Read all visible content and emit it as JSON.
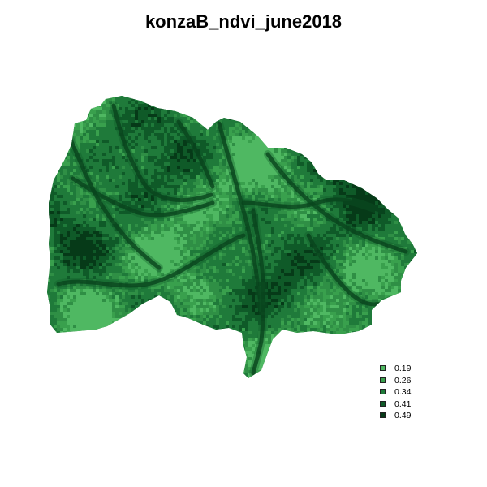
{
  "title": "konzaB_ndvi_june2018",
  "legend": [
    {
      "label": "0.19",
      "color": "#4fb862"
    },
    {
      "label": "0.26",
      "color": "#39a04d"
    },
    {
      "label": "0.34",
      "color": "#1f7a3a"
    },
    {
      "label": "0.41",
      "color": "#0f5a28"
    },
    {
      "label": "0.49",
      "color": "#063a18"
    }
  ]
}
